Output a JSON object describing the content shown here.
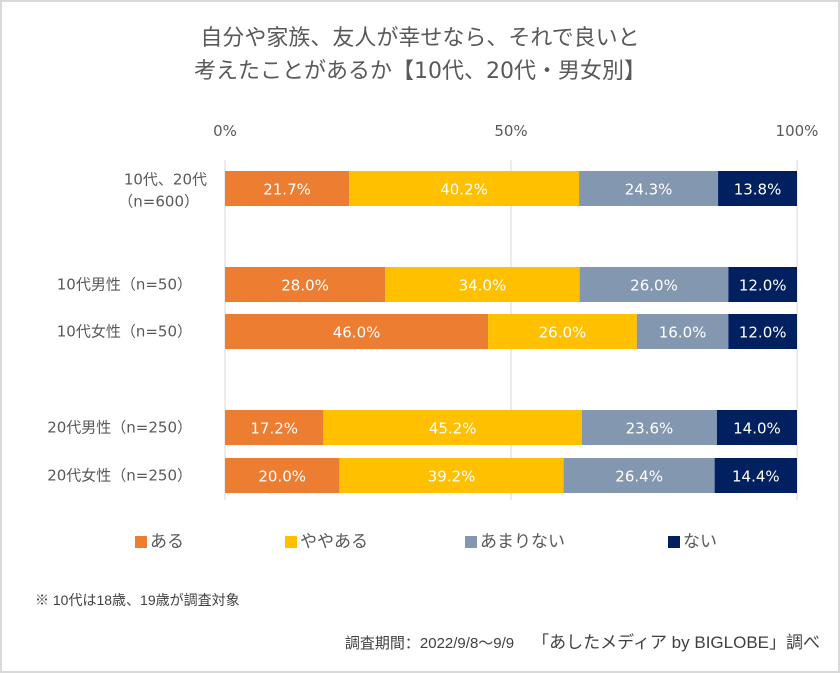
{
  "chart_data": {
    "type": "bar",
    "orientation": "horizontal",
    "stacked": true,
    "title": [
      "自分や家族、友人が幸せなら、それで良いと",
      "考えたことがあるか【10代、20代・男女別】"
    ],
    "xlabel": "",
    "ylabel": "",
    "xlim": [
      0,
      100
    ],
    "x_ticks": [
      0,
      50,
      100
    ],
    "x_tick_labels": [
      "0%",
      "50%",
      "100%"
    ],
    "grid": true,
    "legend_position": "bottom",
    "categories": [
      [
        "10代、20代",
        "（n=600）"
      ],
      [
        "10代男性（n=50）"
      ],
      [
        "10代女性（n=50）"
      ],
      [
        "20代男性（n=250）"
      ],
      [
        "20代女性（n=250）"
      ]
    ],
    "category_groups": [
      0,
      1,
      1,
      2,
      2
    ],
    "series": [
      {
        "name": "ある",
        "color": "#ED7D31",
        "values": [
          21.7,
          28.0,
          46.0,
          17.2,
          20.0
        ]
      },
      {
        "name": "ややある",
        "color": "#FFC000",
        "values": [
          40.2,
          34.0,
          26.0,
          45.2,
          39.2
        ]
      },
      {
        "name": "あまりない",
        "color": "#8497B0",
        "values": [
          24.3,
          26.0,
          16.0,
          23.6,
          26.4
        ]
      },
      {
        "name": "ない",
        "color": "#002060",
        "values": [
          13.8,
          12.0,
          12.0,
          14.0,
          14.4
        ]
      }
    ],
    "value_format": "{v}%"
  },
  "title": {
    "line1": "自分や家族、友人が幸せなら、それで良いと",
    "line2": "考えたことがあるか【10代、20代・男女別】"
  },
  "legend": [
    {
      "label": "ある",
      "color": "#ED7D31"
    },
    {
      "label": "ややある",
      "color": "#FFC000"
    },
    {
      "label": "あまりない",
      "color": "#8497B0"
    },
    {
      "label": "ない",
      "color": "#002060"
    }
  ],
  "footnote": "※ 10代は18歳、19歳が調査対象",
  "source": {
    "period": "調査期間：2022/9/8～9/9",
    "brand": "「あしたメディア by BIGLOBE」調べ"
  }
}
